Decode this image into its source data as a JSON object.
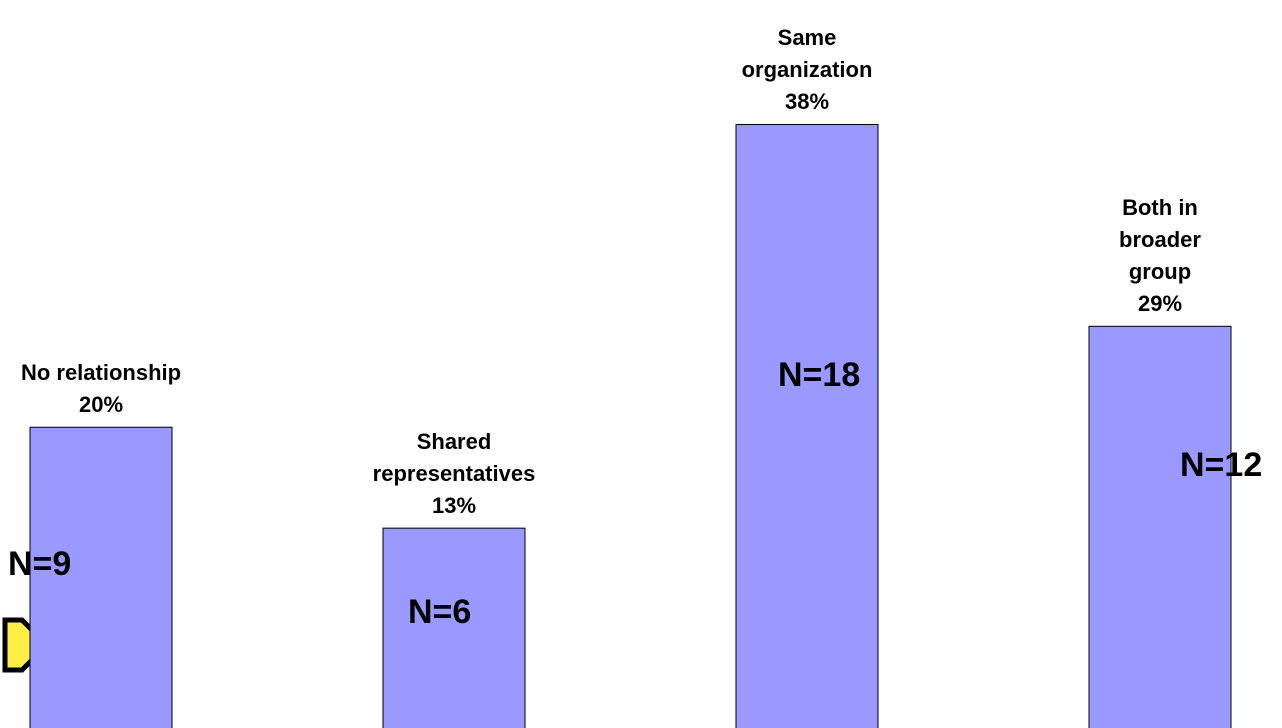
{
  "chart_data": {
    "type": "bar",
    "categories": [
      "No relationship",
      "Shared representatives",
      "Same organization",
      "Both in broader group"
    ],
    "percent_labels": [
      "20%",
      "13%",
      "38%",
      "29%"
    ],
    "values": [
      9,
      6,
      18,
      12
    ],
    "value_labels": [
      "N=9",
      "N=6",
      "N=18",
      "N=12"
    ],
    "color": "#9999ff",
    "ylim": [
      0,
      21.7
    ]
  }
}
